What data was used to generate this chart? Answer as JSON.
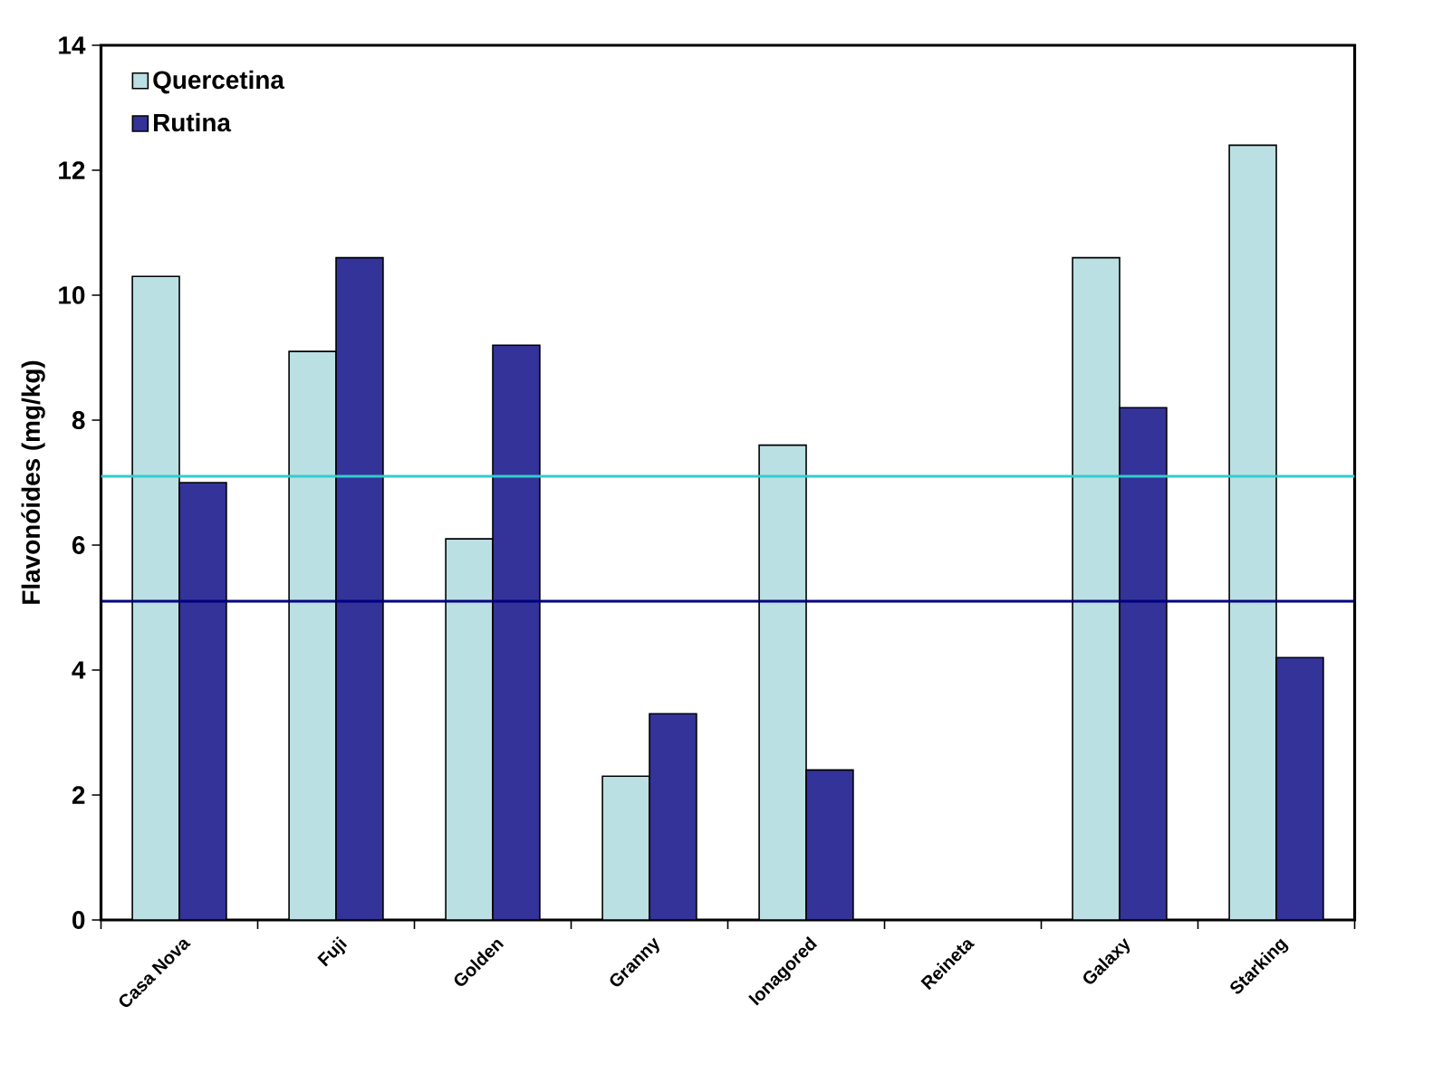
{
  "chart_data": {
    "type": "bar",
    "ylabel": "Flavonóides (mg/kg)",
    "categories": [
      "Casa Nova",
      "Fuji",
      "Golden",
      "Granny",
      "Ionagored",
      "Reineta",
      "Galaxy",
      "Starking"
    ],
    "series": [
      {
        "name": "Quercetina",
        "color": "#bbe0e3",
        "values": [
          10.3,
          9.1,
          6.1,
          2.3,
          7.6,
          0,
          10.6,
          12.4
        ]
      },
      {
        "name": "Rutina",
        "color": "#333399",
        "values": [
          7.0,
          10.6,
          9.2,
          3.3,
          2.4,
          0,
          8.2,
          4.2
        ]
      }
    ],
    "ylim": [
      0,
      14
    ],
    "yticks": [
      0,
      2,
      4,
      6,
      8,
      10,
      12,
      14
    ],
    "ref_lines": [
      {
        "axis": "y",
        "value": 7.1,
        "color": "#33cccc"
      },
      {
        "axis": "y",
        "value": 5.1,
        "color": "#000080"
      }
    ],
    "legend": "top left",
    "grid": false
  }
}
